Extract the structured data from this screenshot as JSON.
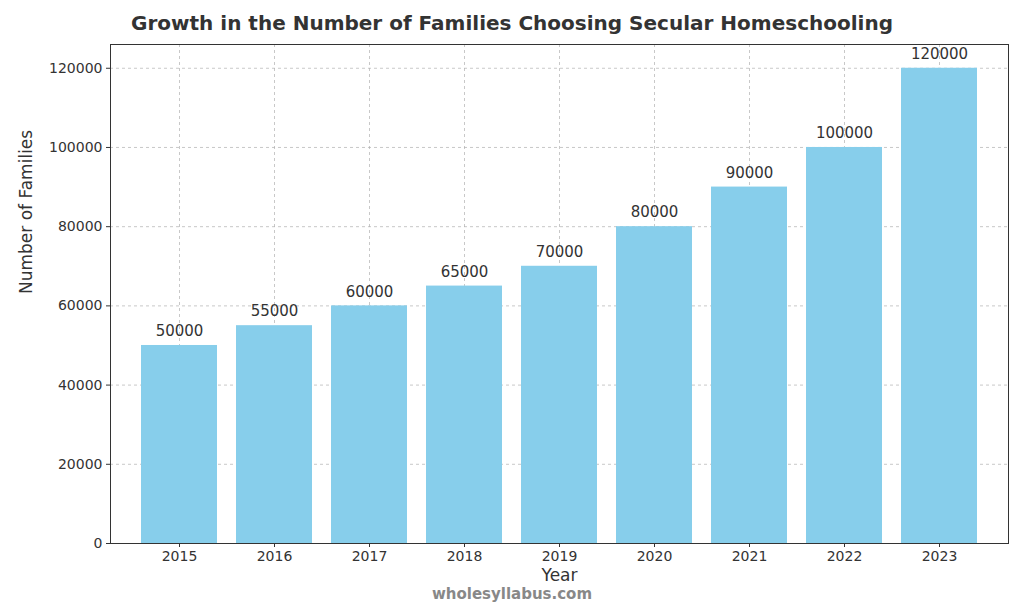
{
  "chart_data": {
    "type": "bar",
    "title": "Growth in the Number of Families Choosing Secular Homeschooling",
    "x_label": "Year",
    "y_label": "Number of Families",
    "categories": [
      "2015",
      "2016",
      "2017",
      "2018",
      "2019",
      "2020",
      "2021",
      "2022",
      "2023"
    ],
    "values": [
      50000,
      55000,
      60000,
      65000,
      70000,
      80000,
      90000,
      100000,
      120000
    ],
    "color": "#87ceeb",
    "ylim": [
      0,
      126000
    ],
    "yticks": [
      0,
      20000,
      40000,
      60000,
      80000,
      100000,
      120000
    ],
    "grid": true,
    "data_labels": true,
    "annotations": [
      "wholesyllabus.com"
    ]
  }
}
